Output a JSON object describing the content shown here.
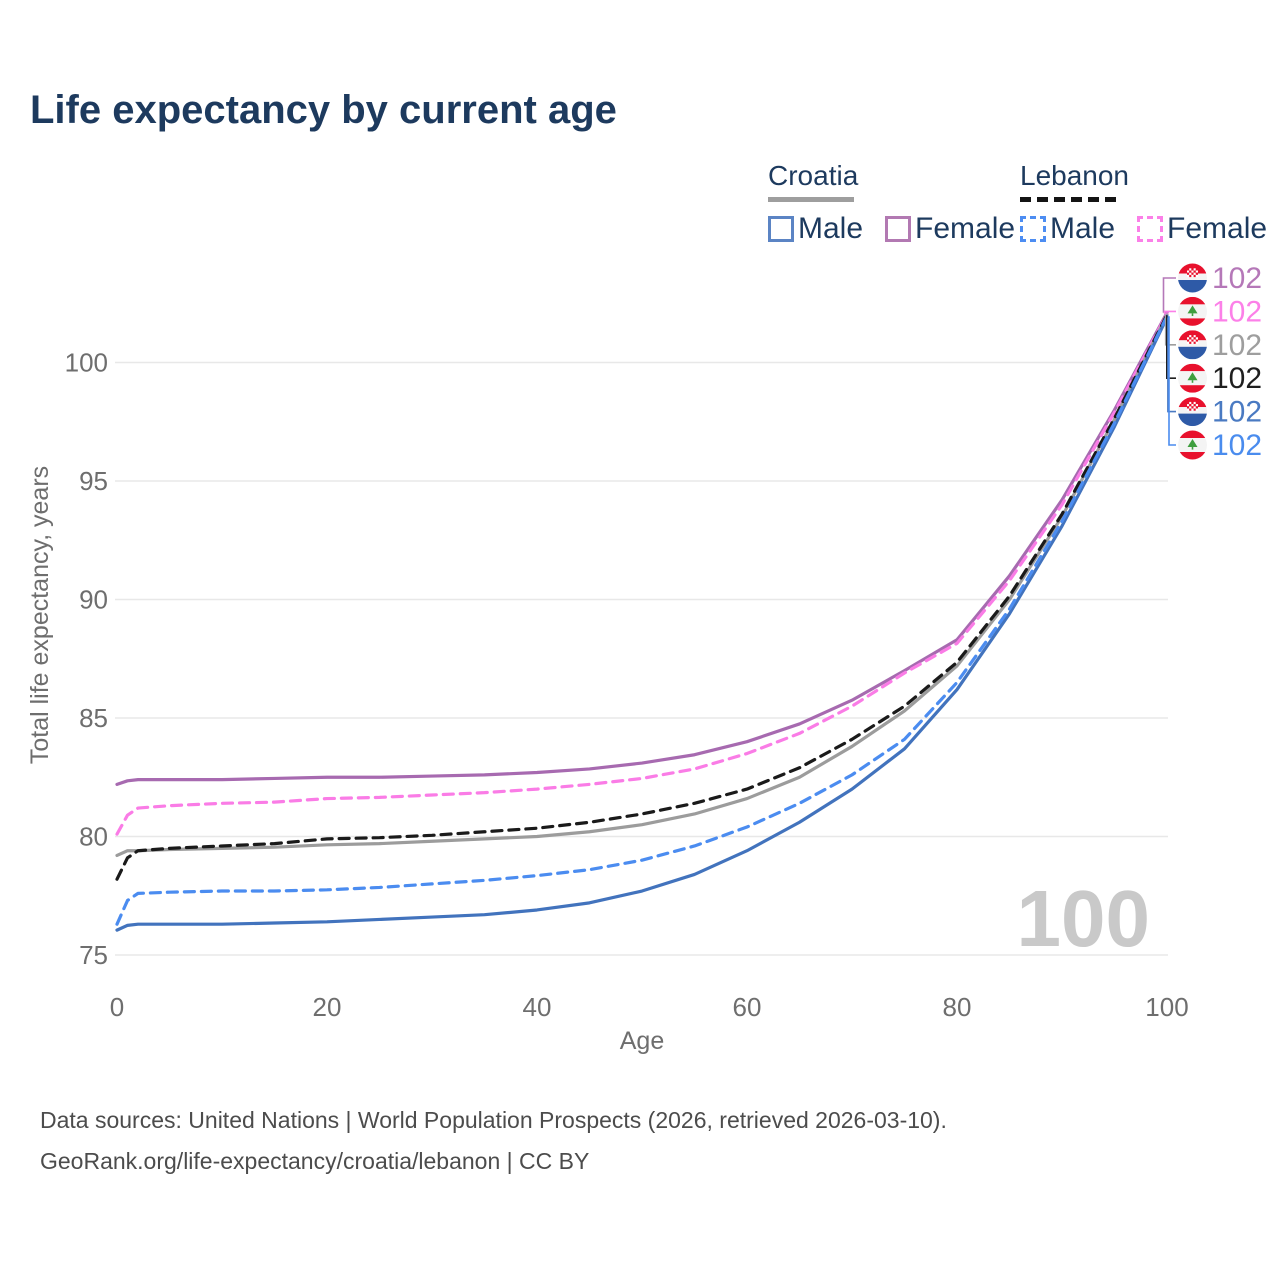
{
  "page_title": "Life expectancy by current age",
  "legend": {
    "groups": [
      {
        "country": "Croatia",
        "line_style": "solid",
        "underline_color": "#9e9e9e",
        "items": [
          {
            "label": "Male",
            "color": "#5b84c4",
            "dashed": false
          },
          {
            "label": "Female",
            "color": "#b279b2",
            "dashed": false
          }
        ]
      },
      {
        "country": "Lebanon",
        "line_style": "dashed",
        "underline_color": "#141414",
        "items": [
          {
            "label": "Male",
            "color": "#4d8df2",
            "dashed": true
          },
          {
            "label": "Female",
            "color": "#fb80e8",
            "dashed": true
          }
        ]
      }
    ]
  },
  "chart_data": {
    "type": "line",
    "title": "Life expectancy by current age",
    "xlabel": "Age",
    "ylabel": "Total life expectancy, years",
    "xlim": [
      0,
      100
    ],
    "ylim": [
      75,
      102.5
    ],
    "xticks": [
      0,
      20,
      40,
      60,
      80,
      100
    ],
    "yticks": [
      75,
      80,
      85,
      90,
      95,
      100
    ],
    "grid": "horizontal",
    "legend_position": "top-right",
    "age_watermark": "100",
    "x": [
      0,
      1,
      2,
      5,
      10,
      15,
      20,
      25,
      30,
      35,
      40,
      45,
      50,
      55,
      60,
      65,
      70,
      75,
      80,
      85,
      90,
      95,
      100
    ],
    "series": [
      {
        "name": "Croatia Female",
        "country": "Croatia",
        "sex": "female",
        "color": "#a76ab0",
        "dash": false,
        "end_label": "102",
        "values": [
          82.2,
          82.35,
          82.4,
          82.4,
          82.4,
          82.45,
          82.5,
          82.5,
          82.55,
          82.6,
          82.7,
          82.85,
          83.1,
          83.45,
          84.0,
          84.75,
          85.75,
          87.0,
          88.3,
          91.0,
          94.2,
          98.0,
          102.1
        ]
      },
      {
        "name": "Lebanon Female",
        "country": "Lebanon",
        "sex": "female",
        "color": "#fa7ce6",
        "dash": true,
        "end_label": "102",
        "values": [
          80.1,
          80.9,
          81.2,
          81.3,
          81.4,
          81.45,
          81.6,
          81.65,
          81.75,
          81.85,
          82.0,
          82.2,
          82.45,
          82.85,
          83.5,
          84.35,
          85.5,
          86.9,
          88.15,
          90.8,
          94.0,
          97.9,
          102.05
        ]
      },
      {
        "name": "Croatia Both sexes",
        "country": "Croatia",
        "sex": "both",
        "color": "#9c9c9c",
        "dash": false,
        "end_label": "102",
        "values": [
          79.2,
          79.4,
          79.4,
          79.45,
          79.5,
          79.55,
          79.65,
          79.7,
          79.8,
          79.9,
          80.0,
          80.2,
          80.5,
          80.95,
          81.6,
          82.5,
          83.8,
          85.3,
          87.2,
          90.0,
          93.5,
          97.6,
          102.0
        ]
      },
      {
        "name": "Lebanon Both sexes",
        "country": "Lebanon",
        "sex": "both",
        "color": "#1a1a1a",
        "dash": true,
        "end_label": "102",
        "values": [
          78.2,
          79.1,
          79.4,
          79.5,
          79.6,
          79.7,
          79.9,
          79.95,
          80.05,
          80.2,
          80.35,
          80.6,
          80.95,
          81.4,
          82.0,
          82.9,
          84.1,
          85.5,
          87.35,
          90.15,
          93.6,
          97.65,
          102.0
        ]
      },
      {
        "name": "Croatia Male",
        "country": "Croatia",
        "sex": "male",
        "color": "#4273bd",
        "dash": false,
        "end_label": "102",
        "values": [
          76.05,
          76.25,
          76.3,
          76.3,
          76.3,
          76.35,
          76.4,
          76.5,
          76.6,
          76.7,
          76.9,
          77.2,
          77.7,
          78.4,
          79.4,
          80.6,
          82.0,
          83.7,
          86.2,
          89.4,
          93.1,
          97.3,
          101.9
        ]
      },
      {
        "name": "Lebanon Male",
        "country": "Lebanon",
        "sex": "male",
        "color": "#4b8cf0",
        "dash": true,
        "end_label": "102",
        "values": [
          76.3,
          77.3,
          77.6,
          77.65,
          77.7,
          77.7,
          77.75,
          77.85,
          78.0,
          78.15,
          78.35,
          78.6,
          79.0,
          79.6,
          80.4,
          81.4,
          82.6,
          84.1,
          86.5,
          89.6,
          93.3,
          97.45,
          101.95
        ]
      }
    ]
  },
  "right_labels": [
    {
      "flag": "croatia",
      "value": "102",
      "color": "#b578b8"
    },
    {
      "flag": "lebanon",
      "value": "102",
      "color": "#fc80e8"
    },
    {
      "flag": "croatia",
      "value": "102",
      "color": "#9e9e9e"
    },
    {
      "flag": "lebanon",
      "value": "102",
      "color": "#1f1f1f"
    },
    {
      "flag": "croatia",
      "value": "102",
      "color": "#4a7ac2"
    },
    {
      "flag": "lebanon",
      "value": "102",
      "color": "#4a8cee"
    }
  ],
  "footer": {
    "line1": "Data sources: United Nations | World Population Prospects (2026, retrieved 2026-03-10).",
    "line2": "GeoRank.org/life-expectancy/croatia/lebanon | CC BY"
  }
}
